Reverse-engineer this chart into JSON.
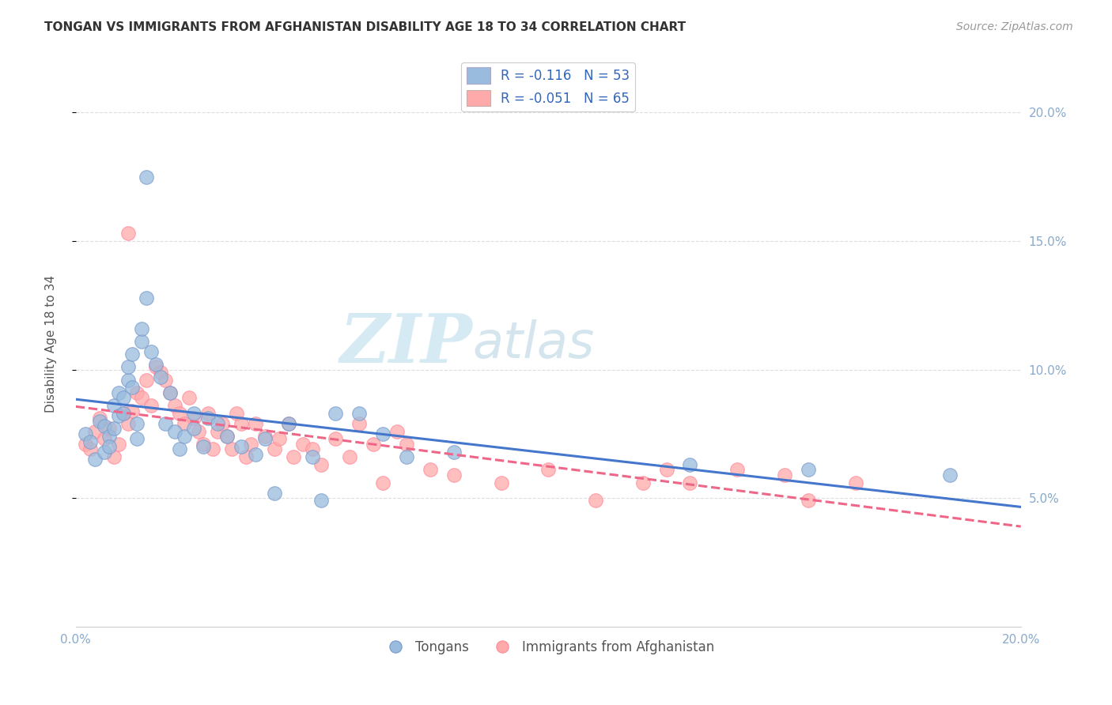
{
  "title": "TONGAN VS IMMIGRANTS FROM AFGHANISTAN DISABILITY AGE 18 TO 34 CORRELATION CHART",
  "source": "Source: ZipAtlas.com",
  "ylabel": "Disability Age 18 to 34",
  "xmin": 0.0,
  "xmax": 0.2,
  "ymin": 0.0,
  "ymax": 0.22,
  "ytick_labels": [
    "5.0%",
    "10.0%",
    "15.0%",
    "20.0%"
  ],
  "ytick_vals": [
    0.05,
    0.1,
    0.15,
    0.2
  ],
  "xtick_labels": [
    "0.0%",
    "",
    "",
    "",
    "20.0%"
  ],
  "xtick_vals": [
    0.0,
    0.05,
    0.1,
    0.15,
    0.2
  ],
  "blue_color": "#99BBDD",
  "pink_color": "#FFAAAA",
  "blue_edge": "#7799CC",
  "pink_edge": "#FF8899",
  "line_blue": "#4477CC",
  "line_pink": "#EE6688",
  "watermark_zip_color": "#BBDDEE",
  "watermark_atlas_color": "#AACCDD",
  "background_color": "#FFFFFF",
  "grid_color": "#DDDDDD",
  "tick_color": "#88AACC",
  "title_color": "#333333",
  "source_color": "#999999",
  "ylabel_color": "#555555",
  "blue_scatter_x": [
    0.002,
    0.003,
    0.004,
    0.005,
    0.006,
    0.006,
    0.007,
    0.007,
    0.008,
    0.008,
    0.009,
    0.009,
    0.01,
    0.01,
    0.011,
    0.011,
    0.012,
    0.012,
    0.013,
    0.013,
    0.014,
    0.014,
    0.015,
    0.015,
    0.016,
    0.017,
    0.018,
    0.019,
    0.02,
    0.021,
    0.022,
    0.023,
    0.025,
    0.025,
    0.027,
    0.028,
    0.03,
    0.032,
    0.035,
    0.038,
    0.04,
    0.042,
    0.045,
    0.05,
    0.052,
    0.055,
    0.06,
    0.065,
    0.07,
    0.08,
    0.13,
    0.155,
    0.185
  ],
  "blue_scatter_y": [
    0.075,
    0.072,
    0.065,
    0.08,
    0.078,
    0.068,
    0.074,
    0.07,
    0.077,
    0.086,
    0.091,
    0.082,
    0.083,
    0.089,
    0.096,
    0.101,
    0.106,
    0.093,
    0.073,
    0.079,
    0.111,
    0.116,
    0.175,
    0.128,
    0.107,
    0.102,
    0.097,
    0.079,
    0.091,
    0.076,
    0.069,
    0.074,
    0.077,
    0.083,
    0.07,
    0.081,
    0.079,
    0.074,
    0.07,
    0.067,
    0.073,
    0.052,
    0.079,
    0.066,
    0.049,
    0.083,
    0.083,
    0.075,
    0.066,
    0.068,
    0.063,
    0.061,
    0.059
  ],
  "pink_scatter_x": [
    0.002,
    0.003,
    0.004,
    0.005,
    0.006,
    0.007,
    0.008,
    0.009,
    0.01,
    0.011,
    0.011,
    0.012,
    0.013,
    0.014,
    0.015,
    0.016,
    0.017,
    0.018,
    0.019,
    0.02,
    0.021,
    0.022,
    0.023,
    0.024,
    0.025,
    0.026,
    0.027,
    0.028,
    0.029,
    0.03,
    0.031,
    0.032,
    0.033,
    0.034,
    0.035,
    0.036,
    0.037,
    0.038,
    0.04,
    0.042,
    0.043,
    0.045,
    0.046,
    0.048,
    0.05,
    0.052,
    0.055,
    0.058,
    0.06,
    0.063,
    0.065,
    0.068,
    0.07,
    0.075,
    0.08,
    0.09,
    0.1,
    0.11,
    0.12,
    0.125,
    0.13,
    0.14,
    0.15,
    0.155,
    0.165
  ],
  "pink_scatter_y": [
    0.071,
    0.069,
    0.076,
    0.081,
    0.073,
    0.077,
    0.066,
    0.071,
    0.083,
    0.153,
    0.079,
    0.084,
    0.091,
    0.089,
    0.096,
    0.086,
    0.101,
    0.099,
    0.096,
    0.091,
    0.086,
    0.083,
    0.079,
    0.089,
    0.081,
    0.076,
    0.071,
    0.083,
    0.069,
    0.076,
    0.079,
    0.074,
    0.069,
    0.083,
    0.079,
    0.066,
    0.071,
    0.079,
    0.074,
    0.069,
    0.073,
    0.079,
    0.066,
    0.071,
    0.069,
    0.063,
    0.073,
    0.066,
    0.079,
    0.071,
    0.056,
    0.076,
    0.071,
    0.061,
    0.059,
    0.056,
    0.061,
    0.049,
    0.056,
    0.061,
    0.056,
    0.061,
    0.059,
    0.049,
    0.056
  ]
}
